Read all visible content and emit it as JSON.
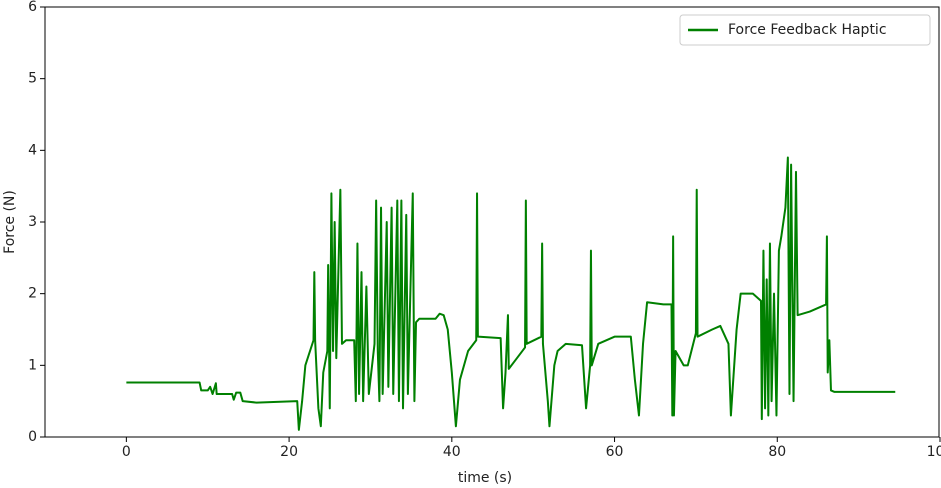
{
  "chart_data": {
    "type": "line",
    "xlabel": "time (s)",
    "ylabel": "Force (N)",
    "xlim": [
      -10,
      100
    ],
    "xticks": [
      0,
      20,
      40,
      60,
      80,
      100
    ],
    "ylim": [
      0,
      6
    ],
    "yticks": [
      0,
      1,
      2,
      3,
      4,
      5,
      6
    ],
    "legend": "upper right",
    "series": [
      {
        "name": "Force Feedback Haptic",
        "color": "#008000",
        "x": [
          0,
          9,
          9.2,
          10,
          10.3,
          10.6,
          11,
          11.1,
          13,
          13.2,
          13.5,
          14,
          14.3,
          16,
          21,
          21.2,
          21.6,
          22,
          23,
          23.1,
          23.2,
          23.6,
          23.9,
          24.2,
          24.7,
          24.8,
          25,
          25.2,
          25.4,
          25.6,
          25.8,
          26.3,
          26.5,
          27,
          28,
          28.2,
          28.4,
          28.6,
          28.9,
          29.1,
          29.5,
          29.8,
          30.5,
          30.7,
          30.9,
          31.1,
          31.3,
          31.5,
          32,
          32.2,
          32.6,
          32.8,
          33.3,
          33.5,
          33.8,
          34,
          34.4,
          34.6,
          35.2,
          35.4,
          35.6,
          36,
          38,
          38.5,
          39,
          39.5,
          40,
          40.5,
          41,
          42,
          43,
          43.1,
          43.2,
          46,
          46.3,
          46.6,
          46.9,
          47,
          48,
          49,
          49.1,
          49.2,
          51,
          51.1,
          51.2,
          51.8,
          52,
          52.6,
          53,
          54,
          56,
          56.5,
          57,
          57.1,
          57.2,
          58,
          60,
          62,
          62.5,
          63,
          63.5,
          64,
          66,
          67,
          67.1,
          67.2,
          67.3,
          67.5,
          68.5,
          69,
          70,
          70.1,
          70.2,
          72,
          73,
          74,
          74.3,
          75,
          75.5,
          77,
          78,
          78.1,
          78.3,
          78.5,
          78.7,
          78.9,
          79.1,
          79.3,
          79.6,
          79.9,
          80.2,
          80.5,
          81,
          81.3,
          81.5,
          81.7,
          82,
          82.3,
          82.5,
          84,
          86,
          86.1,
          86.2,
          86.4,
          86.6,
          87,
          94.5
        ],
        "values": [
          0.76,
          0.76,
          0.65,
          0.65,
          0.7,
          0.6,
          0.75,
          0.6,
          0.6,
          0.52,
          0.62,
          0.62,
          0.5,
          0.48,
          0.5,
          0.1,
          0.5,
          1.0,
          1.35,
          2.3,
          1.35,
          0.4,
          0.15,
          0.9,
          1.2,
          2.4,
          0.4,
          3.4,
          1.2,
          3.0,
          1.1,
          3.45,
          1.3,
          1.35,
          1.35,
          0.5,
          2.7,
          0.6,
          2.3,
          0.5,
          2.1,
          0.6,
          1.3,
          3.3,
          1.2,
          0.5,
          3.2,
          0.6,
          3.0,
          0.7,
          3.2,
          0.6,
          3.3,
          0.5,
          3.3,
          0.4,
          3.1,
          0.6,
          3.4,
          0.5,
          1.6,
          1.65,
          1.65,
          1.72,
          1.7,
          1.5,
          0.9,
          0.15,
          0.8,
          1.2,
          1.35,
          3.4,
          1.4,
          1.38,
          0.4,
          0.9,
          1.7,
          0.95,
          1.1,
          1.25,
          3.3,
          1.3,
          1.4,
          2.7,
          1.3,
          0.5,
          0.15,
          1.0,
          1.2,
          1.3,
          1.28,
          0.4,
          1.0,
          2.6,
          1.0,
          1.3,
          1.4,
          1.4,
          0.8,
          0.3,
          1.3,
          1.88,
          1.85,
          1.85,
          0.3,
          2.8,
          0.3,
          1.2,
          1.0,
          1.0,
          1.45,
          3.45,
          1.4,
          1.5,
          1.55,
          1.3,
          0.3,
          1.5,
          2.0,
          2.0,
          1.9,
          0.25,
          2.6,
          0.4,
          2.2,
          0.3,
          2.7,
          0.5,
          2.0,
          0.3,
          2.6,
          2.8,
          3.2,
          3.9,
          0.6,
          3.8,
          0.5,
          3.7,
          1.7,
          1.75,
          1.85,
          2.8,
          0.9,
          1.35,
          0.65,
          0.63,
          0.63
        ]
      }
    ]
  }
}
